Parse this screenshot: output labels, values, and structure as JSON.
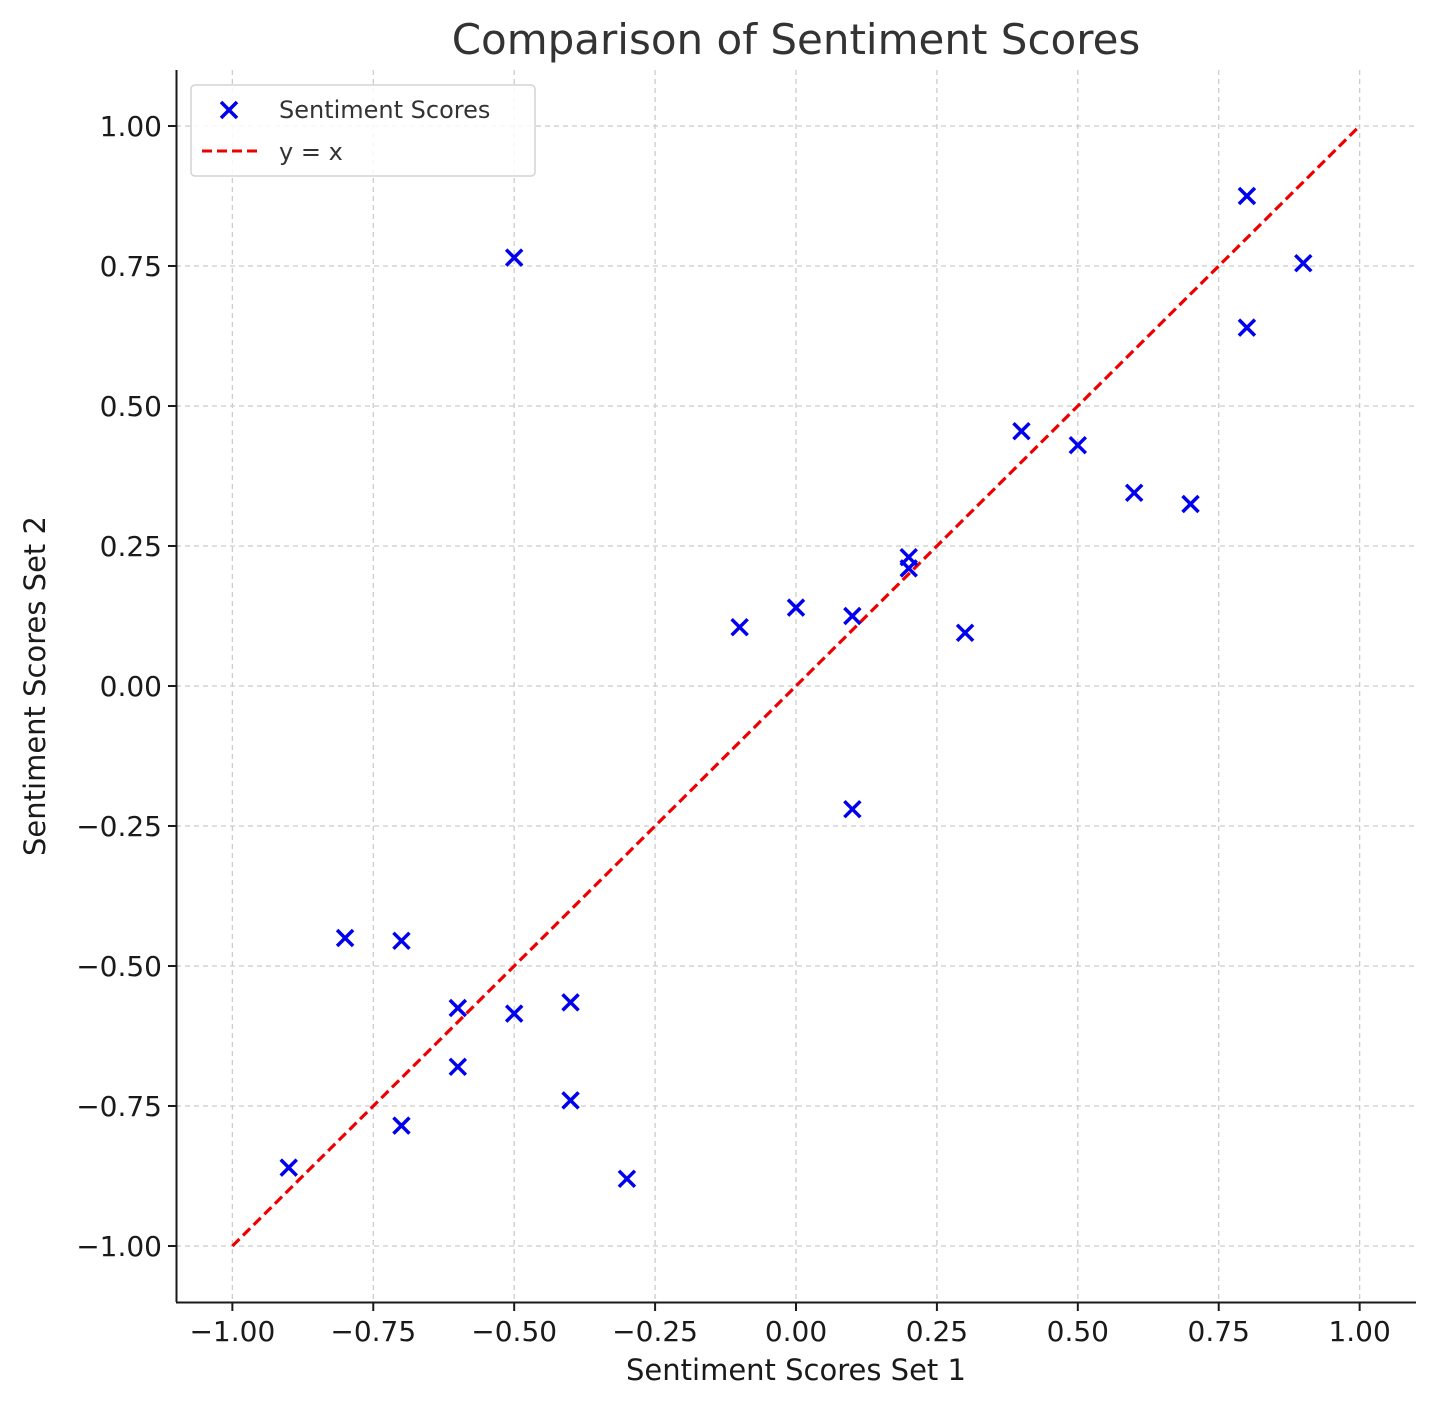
{
  "chart_data": {
    "type": "scatter",
    "title": "Comparison of Sentiment Scores",
    "xlabel": "Sentiment Scores Set 1",
    "ylabel": "Sentiment Scores Set 2",
    "xlim": [
      -1.1,
      1.1
    ],
    "ylim": [
      -1.1,
      1.1
    ],
    "xticks": [
      -1.0,
      -0.75,
      -0.5,
      -0.25,
      0.0,
      0.25,
      0.5,
      0.75,
      1.0
    ],
    "yticks": [
      -1.0,
      -0.75,
      -0.5,
      -0.25,
      0.0,
      0.25,
      0.5,
      0.75,
      1.0
    ],
    "xtick_labels": [
      "−1.00",
      "−0.75",
      "−0.50",
      "−0.25",
      "0.00",
      "0.25",
      "0.50",
      "0.75",
      "1.00"
    ],
    "ytick_labels": [
      "−1.00",
      "−0.75",
      "−0.50",
      "−0.25",
      "0.00",
      "0.25",
      "0.50",
      "0.75",
      "1.00"
    ],
    "grid": true,
    "legend_position": "top-left",
    "series": [
      {
        "name": "Sentiment Scores",
        "kind": "scatter",
        "marker": "x",
        "color": "#0000ee",
        "points": [
          {
            "x": -0.9,
            "y": -0.86
          },
          {
            "x": -0.8,
            "y": -0.45
          },
          {
            "x": -0.7,
            "y": -0.455
          },
          {
            "x": -0.7,
            "y": -0.785
          },
          {
            "x": -0.6,
            "y": -0.575
          },
          {
            "x": -0.6,
            "y": -0.68
          },
          {
            "x": -0.5,
            "y": -0.585
          },
          {
            "x": -0.5,
            "y": 0.765
          },
          {
            "x": -0.4,
            "y": -0.565
          },
          {
            "x": -0.4,
            "y": -0.74
          },
          {
            "x": -0.3,
            "y": -0.88
          },
          {
            "x": -0.1,
            "y": 0.105
          },
          {
            "x": 0.0,
            "y": 0.14
          },
          {
            "x": 0.1,
            "y": 0.125
          },
          {
            "x": 0.1,
            "y": -0.22
          },
          {
            "x": 0.2,
            "y": 0.23
          },
          {
            "x": 0.2,
            "y": 0.21
          },
          {
            "x": 0.3,
            "y": 0.095
          },
          {
            "x": 0.4,
            "y": 0.455
          },
          {
            "x": 0.5,
            "y": 0.43
          },
          {
            "x": 0.6,
            "y": 0.345
          },
          {
            "x": 0.7,
            "y": 0.325
          },
          {
            "x": 0.8,
            "y": 0.875
          },
          {
            "x": 0.8,
            "y": 0.64
          },
          {
            "x": 0.9,
            "y": 0.755
          }
        ]
      },
      {
        "name": "y = x",
        "kind": "line",
        "style": "dashed",
        "color": "#ee0000",
        "points": [
          {
            "x": -1.0,
            "y": -1.0
          },
          {
            "x": 1.0,
            "y": 1.0
          }
        ]
      }
    ]
  }
}
